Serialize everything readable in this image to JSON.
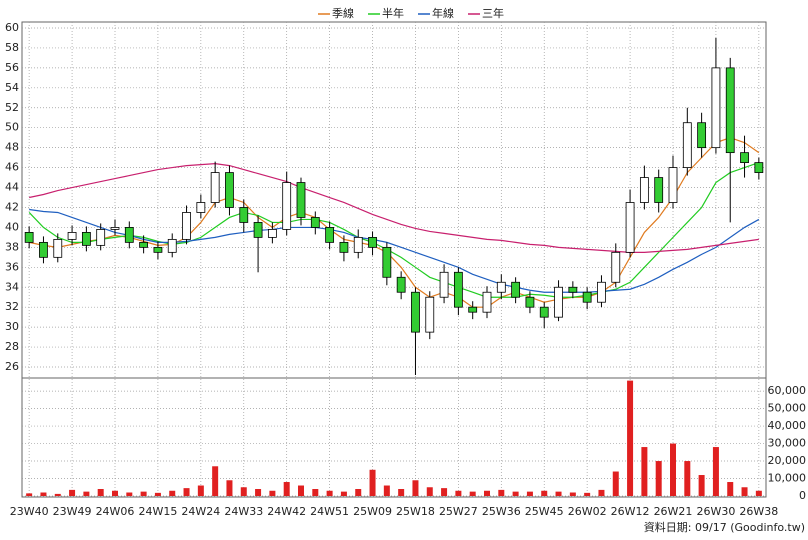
{
  "chart_data": {
    "type": "candlestick",
    "categories": [
      "23W40",
      null,
      null,
      "23W49",
      null,
      null,
      "24W06",
      null,
      null,
      "24W15",
      null,
      null,
      "24W24",
      null,
      null,
      "24W33",
      null,
      null,
      "24W42",
      null,
      null,
      "24W51",
      null,
      null,
      "25W09",
      null,
      null,
      "25W18",
      null,
      null,
      "25W27",
      null,
      null,
      "25W36",
      null,
      null,
      "25W45",
      null,
      null,
      "26W02",
      null,
      null,
      "26W12",
      null,
      null,
      "26W21",
      null,
      null,
      "26W30",
      null,
      null,
      "26W38"
    ],
    "open": [
      39.5,
      38.5,
      37.0,
      38.8,
      39.5,
      38.2,
      39.8,
      40.0,
      38.5,
      38.0,
      37.5,
      38.8,
      41.5,
      42.5,
      45.5,
      42.0,
      40.5,
      39.0,
      39.8,
      44.5,
      41.0,
      40.0,
      38.5,
      37.5,
      39.0,
      38.0,
      35.0,
      33.5,
      29.5,
      33.0,
      35.5,
      32.0,
      31.5,
      33.5,
      34.5,
      33.0,
      32.0,
      31.0,
      34.0,
      33.5,
      32.5,
      34.5,
      37.5,
      42.5,
      45.0,
      42.5,
      46.0,
      50.5,
      48.0,
      56.0,
      47.5,
      46.5
    ],
    "high": [
      40.1,
      39.1,
      39.4,
      40.2,
      40.1,
      40.4,
      40.8,
      40.6,
      39.2,
      38.6,
      39.4,
      42.2,
      43.3,
      46.6,
      46.2,
      42.8,
      41.2,
      40.5,
      45.6,
      45.0,
      41.6,
      40.6,
      39.2,
      39.8,
      39.6,
      38.5,
      35.6,
      34.0,
      33.6,
      36.3,
      36.0,
      32.6,
      34.1,
      35.3,
      35.0,
      33.6,
      32.5,
      34.7,
      34.6,
      34.0,
      35.2,
      38.4,
      43.8,
      46.2,
      45.8,
      47.2,
      52.0,
      51.5,
      59.0,
      57.0,
      49.2,
      47.0
    ],
    "low": [
      37.9,
      36.4,
      36.5,
      38.2,
      37.6,
      37.7,
      39.2,
      37.9,
      37.4,
      36.8,
      37.0,
      38.3,
      40.9,
      42.0,
      41.2,
      39.5,
      35.5,
      38.4,
      39.2,
      40.2,
      39.3,
      37.8,
      36.6,
      36.9,
      37.2,
      34.2,
      32.8,
      25.2,
      28.8,
      32.4,
      31.2,
      30.8,
      30.9,
      32.8,
      32.4,
      31.4,
      29.9,
      30.6,
      32.9,
      31.8,
      32.0,
      34.0,
      37.0,
      41.8,
      41.5,
      41.9,
      45.2,
      47.0,
      47.4,
      40.5,
      45.0,
      44.8
    ],
    "close": [
      38.5,
      37.0,
      38.8,
      39.5,
      38.2,
      39.8,
      40.0,
      38.5,
      38.0,
      37.5,
      38.8,
      41.5,
      42.5,
      45.5,
      42.0,
      40.5,
      39.0,
      39.8,
      44.5,
      41.0,
      40.0,
      38.5,
      37.5,
      39.0,
      38.0,
      35.0,
      33.5,
      29.5,
      33.0,
      35.5,
      32.0,
      31.5,
      33.5,
      34.5,
      33.0,
      32.0,
      31.0,
      34.0,
      33.5,
      32.5,
      34.5,
      37.5,
      42.5,
      45.0,
      42.5,
      46.0,
      50.5,
      48.0,
      56.0,
      47.5,
      46.5,
      45.5
    ],
    "up_color": "#ffffff",
    "down_color": "#33cc33",
    "series": [
      {
        "name": "季線",
        "color": "#e07b20",
        "values": [
          38.5,
          38.2,
          38.0,
          38.3,
          38.6,
          38.8,
          39.2,
          39.0,
          38.6,
          38.2,
          38.3,
          39.0,
          40.5,
          42.5,
          43.0,
          42.5,
          41.0,
          40.0,
          41.0,
          41.5,
          41.0,
          39.8,
          38.8,
          38.5,
          38.2,
          37.5,
          36.0,
          34.0,
          33.0,
          33.5,
          33.0,
          32.0,
          32.0,
          33.0,
          33.5,
          33.0,
          32.5,
          32.8,
          33.0,
          33.0,
          33.5,
          34.5,
          37.0,
          39.5,
          41.0,
          43.0,
          45.5,
          47.0,
          48.5,
          49.0,
          48.5,
          47.5
        ]
      },
      {
        "name": "半年",
        "color": "#22cc22",
        "values": [
          41.5,
          40.0,
          39.0,
          38.5,
          38.5,
          38.8,
          39.0,
          39.2,
          39.0,
          38.6,
          38.3,
          38.5,
          39.0,
          40.0,
          41.0,
          41.5,
          41.2,
          40.5,
          40.5,
          40.8,
          40.8,
          40.5,
          39.8,
          39.0,
          38.5,
          37.8,
          37.0,
          36.0,
          35.0,
          34.5,
          34.0,
          33.5,
          33.0,
          33.0,
          33.0,
          33.3,
          33.2,
          33.0,
          33.0,
          33.2,
          33.5,
          33.8,
          34.5,
          36.0,
          37.5,
          39.0,
          40.5,
          42.0,
          44.5,
          45.5,
          46.0,
          46.5
        ]
      },
      {
        "name": "年線",
        "color": "#1f5fc0",
        "values": [
          41.8,
          41.6,
          41.5,
          41.0,
          40.5,
          40.0,
          39.5,
          39.2,
          38.8,
          38.5,
          38.5,
          38.6,
          38.8,
          39.0,
          39.3,
          39.5,
          39.7,
          39.8,
          40.0,
          40.0,
          40.0,
          39.8,
          39.5,
          39.0,
          38.8,
          38.5,
          38.0,
          37.5,
          37.0,
          36.5,
          36.0,
          35.3,
          34.8,
          34.3,
          34.0,
          33.7,
          33.5,
          33.5,
          33.5,
          33.5,
          33.6,
          33.7,
          33.8,
          34.3,
          35.0,
          35.8,
          36.5,
          37.3,
          38.0,
          39.0,
          40.0,
          40.8
        ]
      },
      {
        "name": "三年",
        "color": "#c8206e",
        "values": [
          43.0,
          43.3,
          43.7,
          44.0,
          44.3,
          44.6,
          44.9,
          45.2,
          45.5,
          45.8,
          46.0,
          46.2,
          46.3,
          46.4,
          46.2,
          45.8,
          45.4,
          45.0,
          44.6,
          44.0,
          43.5,
          43.0,
          42.5,
          41.9,
          41.3,
          40.8,
          40.3,
          39.9,
          39.6,
          39.4,
          39.2,
          39.0,
          38.8,
          38.7,
          38.5,
          38.3,
          38.2,
          38.0,
          37.9,
          37.8,
          37.7,
          37.6,
          37.5,
          37.5,
          37.6,
          37.7,
          37.8,
          38.0,
          38.2,
          38.4,
          38.6,
          38.8
        ]
      }
    ],
    "ylim": [
      24.9,
      60.6
    ],
    "yticks": [
      26,
      28,
      30,
      32,
      34,
      36,
      38,
      40,
      42,
      44,
      46,
      48,
      50,
      52,
      54,
      56,
      58,
      60
    ],
    "grid": true,
    "volume": {
      "color": "#e02020",
      "values": [
        1500,
        2000,
        1200,
        3500,
        2500,
        4000,
        3000,
        2000,
        2500,
        1800,
        3000,
        4500,
        6000,
        17000,
        9000,
        5000,
        4000,
        3000,
        8000,
        6000,
        4000,
        3000,
        2500,
        4000,
        15000,
        6000,
        4000,
        9000,
        5000,
        4500,
        3000,
        2500,
        3000,
        3500,
        2500,
        2500,
        3000,
        2500,
        2000,
        1800,
        3500,
        14000,
        66000,
        28000,
        20000,
        30000,
        20000,
        12000,
        28000,
        8000,
        5000,
        3000
      ],
      "ylim": [
        0,
        67500
      ],
      "yticks": [
        0,
        {
          "value": 10000,
          "label": "10,000"
        },
        {
          "value": 20000,
          "label": "20,000"
        },
        {
          "value": 30000,
          "label": "30,000"
        },
        {
          "value": 40000,
          "label": "40,000"
        },
        {
          "value": 50000,
          "label": "50,000"
        },
        {
          "value": 60000,
          "label": "60,000"
        }
      ]
    },
    "footer": "資料日期: 09/17 (Goodinfo.tw)"
  }
}
